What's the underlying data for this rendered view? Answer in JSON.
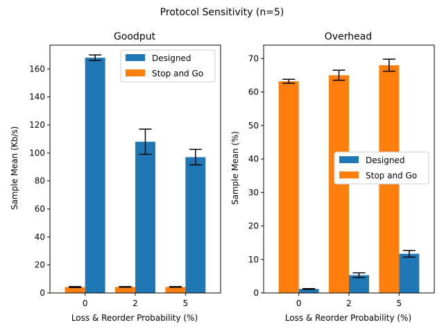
{
  "figure": {
    "title": "Protocol Sensitivity (n=5)"
  },
  "colors": {
    "designed": "#1f77b4",
    "stopgo": "#ff7f0e",
    "axis": "#000000",
    "error": "#000000"
  },
  "chart_data": [
    {
      "type": "bar",
      "title": "Goodput",
      "xlabel": "Loss & Reorder Probability (%)",
      "ylabel": "Sample Mean (Kb/s)",
      "categories": [
        "0",
        "2",
        "5"
      ],
      "ylim": [
        0,
        177
      ],
      "yticks": [
        0,
        20,
        40,
        60,
        80,
        100,
        120,
        140,
        160
      ],
      "grid": false,
      "legend_position": "upper right",
      "series": [
        {
          "name": "Stop and Go",
          "color_key": "stopgo",
          "values": [
            4.2,
            4.3,
            4.3
          ],
          "errors": [
            0.3,
            0.2,
            0.2
          ]
        },
        {
          "name": "Designed",
          "color_key": "designed",
          "values": [
            168,
            108,
            97
          ],
          "errors": [
            2,
            9,
            5.5
          ]
        }
      ]
    },
    {
      "type": "bar",
      "title": "Overhead",
      "xlabel": "Loss & Reorder Probability (%)",
      "ylabel": "Sample Mean (%)",
      "categories": [
        "0",
        "2",
        "5"
      ],
      "ylim": [
        0,
        74
      ],
      "yticks": [
        0,
        10,
        20,
        30,
        40,
        50,
        60,
        70
      ],
      "grid": false,
      "legend_position": "center right",
      "series": [
        {
          "name": "Stop and Go",
          "color_key": "stopgo",
          "values": [
            63.2,
            65,
            68
          ],
          "errors": [
            0.6,
            1.5,
            1.8
          ]
        },
        {
          "name": "Designed",
          "color_key": "designed",
          "values": [
            1.2,
            5.3,
            11.7
          ],
          "errors": [
            0.1,
            0.7,
            1.0
          ]
        }
      ]
    }
  ]
}
